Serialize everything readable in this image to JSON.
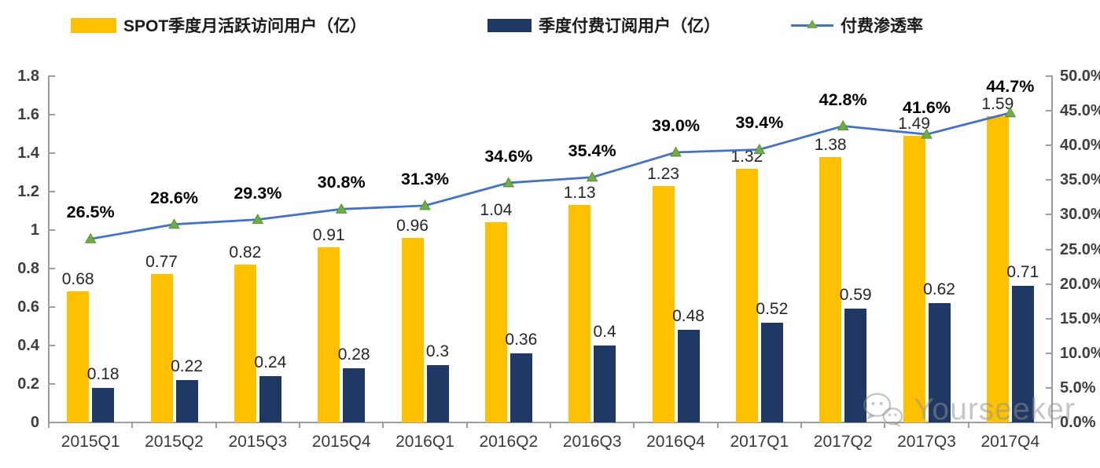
{
  "chart": {
    "legend": [
      {
        "label": "SPOT季度月活跃访问用户（亿）",
        "swatch": "bar",
        "color": "#FFC000"
      },
      {
        "label": "季度付费订阅用户（亿）",
        "swatch": "bar",
        "color": "#1F3864"
      },
      {
        "label": "付费渗透率",
        "swatch": "line",
        "color": "#4472C4",
        "marker_color": "#70AD47"
      }
    ]
  },
  "chart_data": {
    "type": "bar+line",
    "categories": [
      "2015Q1",
      "2015Q2",
      "2015Q3",
      "2015Q4",
      "2016Q1",
      "2016Q2",
      "2016Q3",
      "2016Q4",
      "2017Q1",
      "2017Q2",
      "2017Q3",
      "2017Q4"
    ],
    "series": [
      {
        "name": "SPOT季度月活跃访问用户（亿）",
        "type": "bar",
        "axis": "left",
        "color": "#FFC000",
        "values": [
          0.68,
          0.77,
          0.82,
          0.91,
          0.96,
          1.04,
          1.13,
          1.23,
          1.32,
          1.38,
          1.49,
          1.59
        ]
      },
      {
        "name": "季度付费订阅用户（亿）",
        "type": "bar",
        "axis": "left",
        "color": "#1F3864",
        "values": [
          0.18,
          0.22,
          0.24,
          0.28,
          0.3,
          0.36,
          0.4,
          0.48,
          0.52,
          0.59,
          0.62,
          0.71
        ]
      },
      {
        "name": "付费渗透率",
        "type": "line",
        "axis": "right",
        "color": "#4472C4",
        "marker": "triangle",
        "marker_color": "#70AD47",
        "marker_edge_color": "#5a8f39",
        "values": [
          26.5,
          28.6,
          29.3,
          30.8,
          31.3,
          34.6,
          35.4,
          39.0,
          39.4,
          42.8,
          41.6,
          44.7
        ]
      }
    ],
    "left_axis": {
      "min": 0,
      "max": 1.8,
      "tick_labels": [
        "0",
        "0.2",
        "0.4",
        "0.6",
        "0.8",
        "1",
        "1.2",
        "1.4",
        "1.6",
        "1.8"
      ]
    },
    "right_axis": {
      "min": 0,
      "max": 50,
      "tick_labels": [
        "0.0%",
        "5.0%",
        "10.0%",
        "15.0%",
        "20.0%",
        "25.0%",
        "30.0%",
        "35.0%",
        "40.0%",
        "45.0%",
        "50.0%"
      ]
    },
    "grid": false,
    "legend_position": "top",
    "axis_color": "#9d9d9d"
  },
  "watermark": {
    "text": "Yourseeker",
    "icon": "wechat-icon"
  }
}
